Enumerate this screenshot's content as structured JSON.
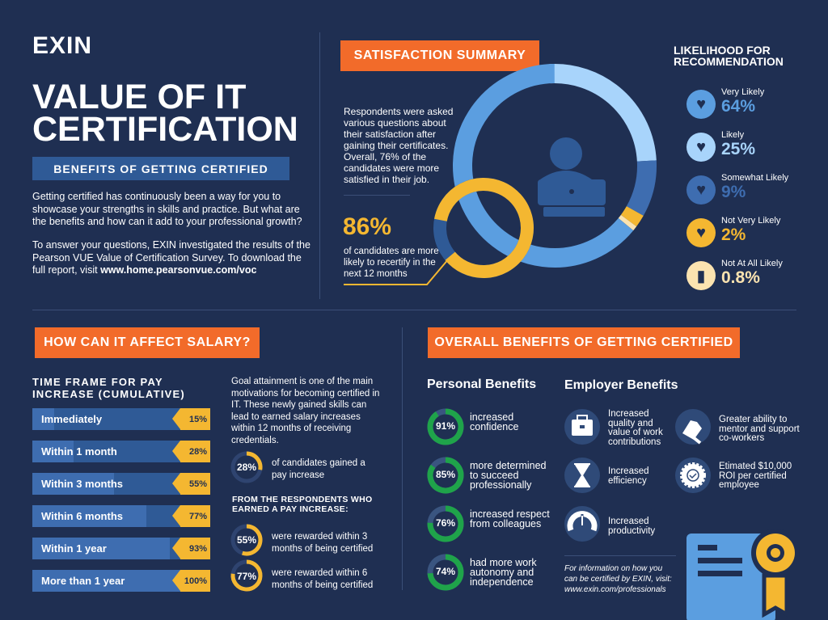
{
  "brand": {
    "logo": "EXIN"
  },
  "header": {
    "title_line1": "VALUE OF IT",
    "title_line2": "CERTIFICATION",
    "banner": "BENEFITS OF GETTING CERTIFIED",
    "intro1": "Getting certified has continuously been a way for you to showcase your strengths in skills and practice. But what are the benefits and how can it add to your professional growth?",
    "intro2": "To answer your questions, EXIN investigated the results of the Pearson VUE Value of Certification Survey. To download the full report, visit ",
    "intro2_link": "www.home.pearsonvue.com/voc"
  },
  "satisfaction": {
    "heading": "SATISFACTION SUMMARY",
    "text": "Respondents were asked various questions about their satisfaction after gaining their certificates. Overall, 76% of the candidates were more satisfied in their job.",
    "recertify_value": "86%",
    "recertify_pct": 86,
    "recertify_text": "of candidates are more likely to recertify in the next 12 months"
  },
  "likelihood": {
    "heading": "LIKELIHOOD FOR RECOMMENDATION",
    "items": [
      {
        "label": "Very Likely",
        "value": "64%",
        "pct": 64,
        "color": "#5b9ee0",
        "icon": "hand-heart-icon"
      },
      {
        "label": "Likely",
        "value": "25%",
        "pct": 25,
        "color": "#a8d4fb",
        "icon": "hearts-icon"
      },
      {
        "label": "Somewhat Likely",
        "value": "9%",
        "pct": 9,
        "color": "#3e6db0",
        "icon": "heart-icon"
      },
      {
        "label": "Not Very Likely",
        "value": "2%",
        "pct": 2,
        "color": "#f4b731",
        "icon": "broken-heart-icon"
      },
      {
        "label": "Not At All Likely",
        "value": "0.8%",
        "pct": 0.8,
        "color": "#fbe3b0",
        "icon": "thumbs-down-icon"
      }
    ]
  },
  "salary": {
    "heading": "HOW CAN IT AFFECT SALARY?",
    "chart_title": "TIME FRAME FOR PAY INCREASE (CUMULATIVE)",
    "bars": [
      {
        "label": "Immediately",
        "value": "15%",
        "pct": 15
      },
      {
        "label": "Within 1 month",
        "value": "28%",
        "pct": 28
      },
      {
        "label": "Within 3 months",
        "value": "55%",
        "pct": 55
      },
      {
        "label": "Within 6 months",
        "value": "77%",
        "pct": 77
      },
      {
        "label": "Within 1 year",
        "value": "93%",
        "pct": 93
      },
      {
        "label": "More than 1 year",
        "value": "100%",
        "pct": 100
      }
    ],
    "text": "Goal attainment is one of the main motivations for becoming certified in IT. These newly gained skills can lead to earned salary increases within 12 months of receiving credentials.",
    "gained": {
      "value": "28%",
      "pct": 28,
      "text": "of candidates gained a pay increase"
    },
    "sub_heading": "FROM THE RESPONDENTS WHO EARNED A PAY INCREASE:",
    "rewarded": [
      {
        "value": "55%",
        "pct": 55,
        "text": "were rewarded within 3 months of being certified"
      },
      {
        "value": "77%",
        "pct": 77,
        "text": "were rewarded within 6 months of being certified"
      }
    ]
  },
  "benefits": {
    "heading": "OVERALL BENEFITS OF GETTING CERTIFIED",
    "personal_title": "Personal Benefits",
    "employer_title": "Employer Benefits",
    "personal": [
      {
        "value": "91%",
        "pct": 91,
        "text": "increased confidence"
      },
      {
        "value": "85%",
        "pct": 85,
        "text": "more determined to succeed professionally"
      },
      {
        "value": "76%",
        "pct": 76,
        "text": "increased respect from colleagues"
      },
      {
        "value": "74%",
        "pct": 74,
        "text": "had more work autonomy and independence"
      }
    ],
    "employer": [
      {
        "text": "Increased quality and value of work contributions",
        "icon": "briefcase-icon"
      },
      {
        "text": "Increased efficiency",
        "icon": "hourglass-icon"
      },
      {
        "text": "Increased productivity",
        "icon": "speedometer-icon"
      },
      {
        "text": "Greater ability to mentor and support co-workers",
        "icon": "fist-bump-icon"
      },
      {
        "text": "Etimated $10,000 ROI per certified employee",
        "icon": "badge-check-icon"
      }
    ],
    "footer": "For information on how you can be certified by EXIN, visit:",
    "footer_link": "www.exin.com/professionals"
  },
  "colors": {
    "background": "#1f2f52",
    "accent": "#f26b2a",
    "yellow": "#f4b731",
    "green": "#1fa34a",
    "blue": "#2f5a96"
  }
}
